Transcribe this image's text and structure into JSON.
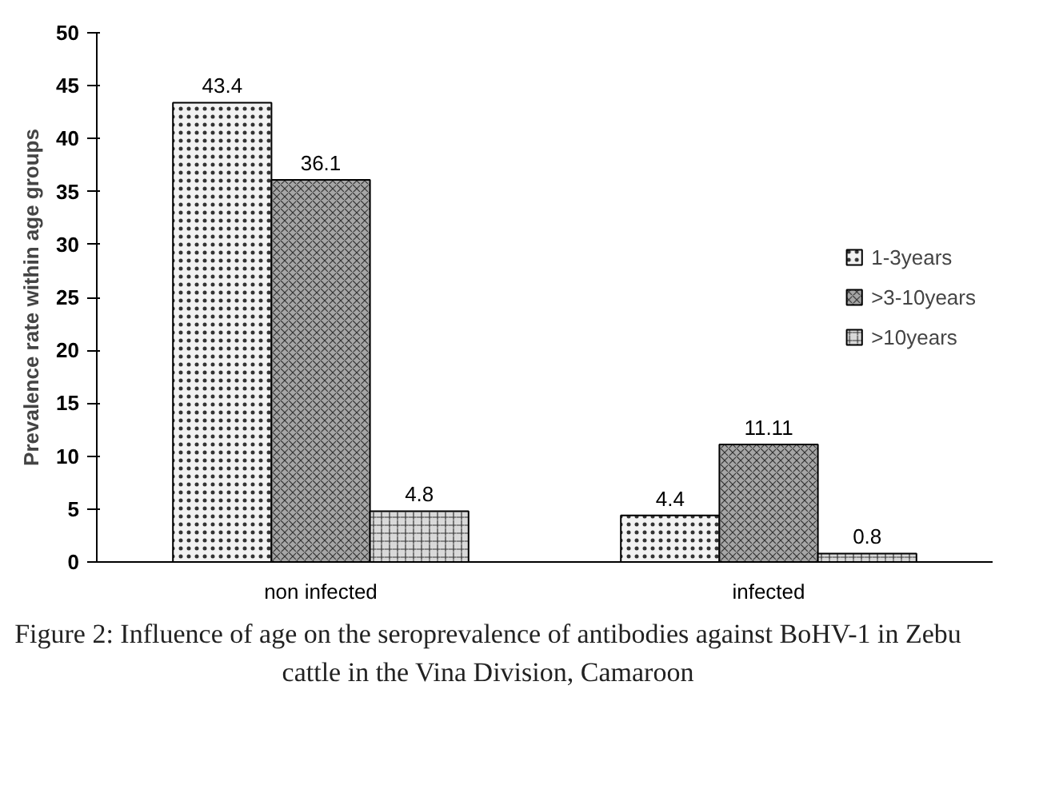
{
  "chart_data": {
    "type": "bar",
    "ylabel": "Prevalence rate within age groups",
    "categories": [
      "non infected",
      "infected"
    ],
    "series": [
      {
        "name": "1-3years",
        "color": "#f2f2f2",
        "values": [
          43.4,
          4.4
        ]
      },
      {
        "name": ">3-10years",
        "color": "#a6a6a6",
        "values": [
          36.1,
          11.11
        ]
      },
      {
        "name": ">10years",
        "color": "#d9d9d9",
        "values": [
          4.8,
          0.8
        ]
      }
    ],
    "ylim": [
      0,
      50
    ],
    "yticks": [
      0,
      5,
      10,
      15,
      20,
      25,
      30,
      35,
      40,
      45,
      50
    ],
    "data_labels": true,
    "grid": false,
    "legend": "right",
    "annotations": [
      "Figure 2: Influence of age on the seroprevalence of antibodies against BoHV-1 in Zebu cattle in the Vina Division, Camaroon"
    ]
  }
}
